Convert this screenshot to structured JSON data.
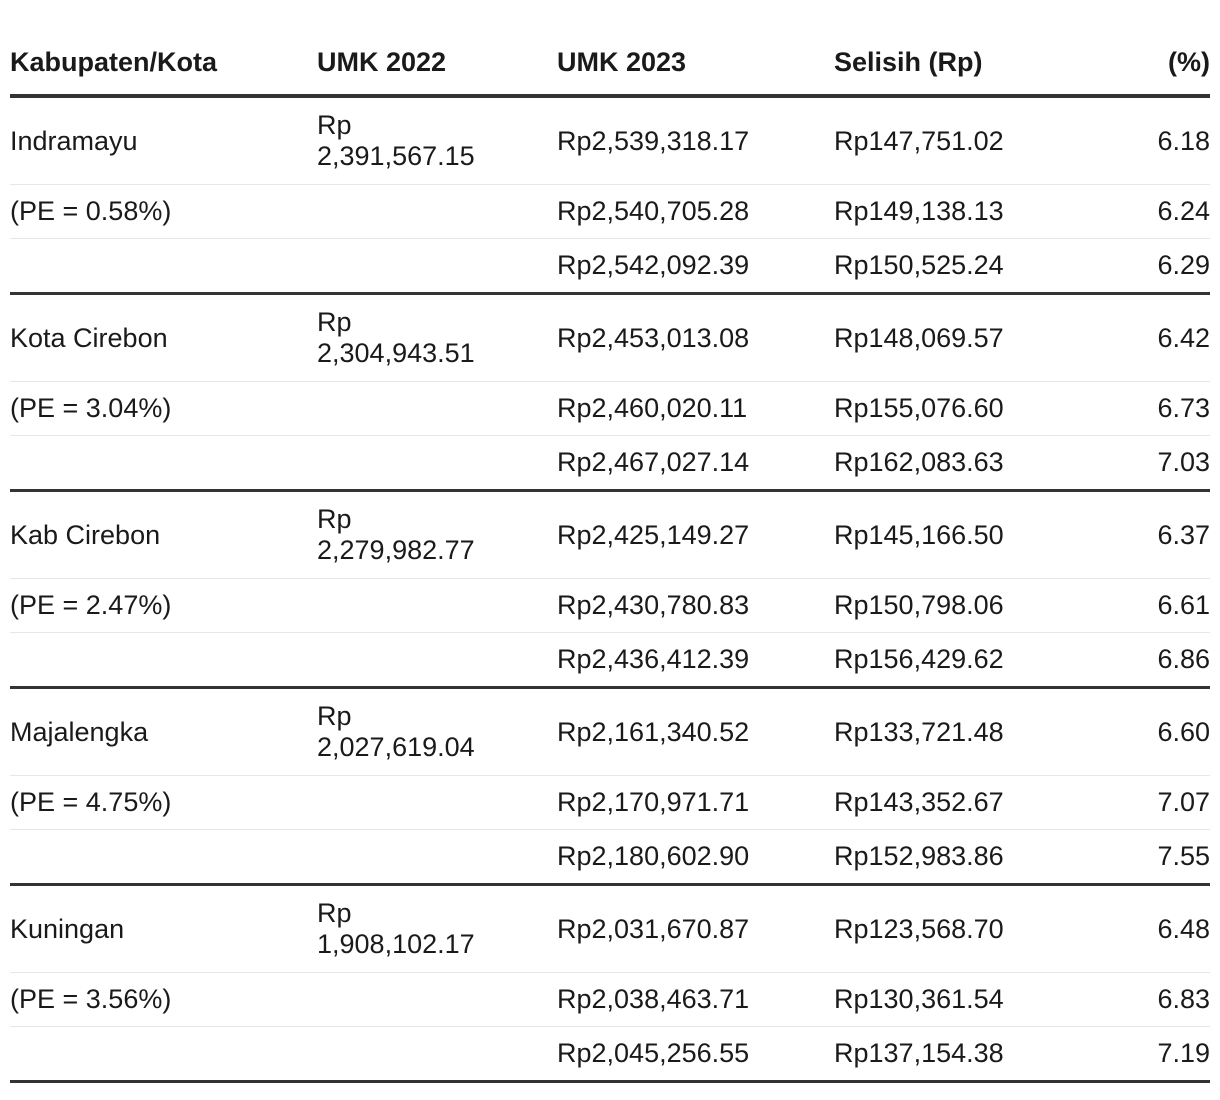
{
  "headers": [
    "Kabupaten/Kota",
    "UMK 2022",
    "UMK 2023",
    "Selisih (Rp)",
    "(%)"
  ],
  "groups": [
    {
      "name": "Indramayu",
      "pe": "(PE = 0.58%)",
      "umk2022_prefix": "Rp",
      "umk2022_value": "2,391,567.15",
      "rows": [
        {
          "umk2023": "Rp2,539,318.17",
          "selisih": "Rp147,751.02",
          "pct": "6.18"
        },
        {
          "umk2023": "Rp2,540,705.28",
          "selisih": "Rp149,138.13",
          "pct": "6.24"
        },
        {
          "umk2023": "Rp2,542,092.39",
          "selisih": "Rp150,525.24",
          "pct": "6.29"
        }
      ]
    },
    {
      "name": "Kota Cirebon",
      "pe": "(PE = 3.04%)",
      "umk2022_prefix": "Rp",
      "umk2022_value": "2,304,943.51",
      "rows": [
        {
          "umk2023": "Rp2,453,013.08",
          "selisih": "Rp148,069.57",
          "pct": "6.42"
        },
        {
          "umk2023": "Rp2,460,020.11",
          "selisih": "Rp155,076.60",
          "pct": "6.73"
        },
        {
          "umk2023": "Rp2,467,027.14",
          "selisih": "Rp162,083.63",
          "pct": "7.03"
        }
      ]
    },
    {
      "name": "Kab Cirebon",
      "pe": "(PE = 2.47%)",
      "umk2022_prefix": "Rp",
      "umk2022_value": "2,279,982.77",
      "rows": [
        {
          "umk2023": "Rp2,425,149.27",
          "selisih": "Rp145,166.50",
          "pct": "6.37"
        },
        {
          "umk2023": "Rp2,430,780.83",
          "selisih": "Rp150,798.06",
          "pct": "6.61"
        },
        {
          "umk2023": "Rp2,436,412.39",
          "selisih": "Rp156,429.62",
          "pct": "6.86"
        }
      ]
    },
    {
      "name": "Majalengka",
      "pe": "(PE = 4.75%)",
      "umk2022_prefix": "Rp",
      "umk2022_value": "2,027,619.04",
      "rows": [
        {
          "umk2023": "Rp2,161,340.52",
          "selisih": "Rp133,721.48",
          "pct": "6.60"
        },
        {
          "umk2023": "Rp2,170,971.71",
          "selisih": "Rp143,352.67",
          "pct": "7.07"
        },
        {
          "umk2023": "Rp2,180,602.90",
          "selisih": "Rp152,983.86",
          "pct": "7.55"
        }
      ]
    },
    {
      "name": "Kuningan",
      "pe": "(PE = 3.56%)",
      "umk2022_prefix": "Rp",
      "umk2022_value": "1,908,102.17",
      "rows": [
        {
          "umk2023": "Rp2,031,670.87",
          "selisih": "Rp123,568.70",
          "pct": "6.48"
        },
        {
          "umk2023": "Rp2,038,463.71",
          "selisih": "Rp130,361.54",
          "pct": "6.83"
        },
        {
          "umk2023": "Rp2,045,256.55",
          "selisih": "Rp137,154.38",
          "pct": "7.19"
        }
      ]
    }
  ]
}
